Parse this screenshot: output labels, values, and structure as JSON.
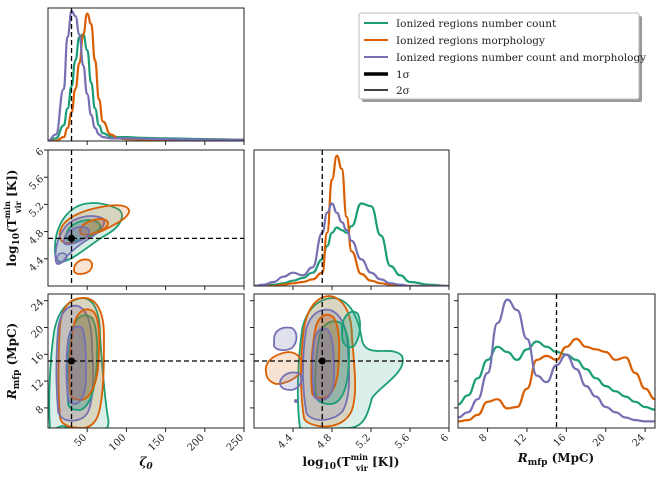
{
  "chart_data": {
    "type": "corner",
    "parameters": [
      {
        "key": "zeta",
        "label": "ζ₀",
        "range": [
          0,
          250
        ],
        "ticks": [
          50,
          100,
          150,
          200,
          250
        ],
        "truth": 30
      },
      {
        "key": "tvir",
        "label": "log₁₀(T_vir^min [K])",
        "range": [
          4.0,
          6.0
        ],
        "ticks": [
          4.4,
          4.8,
          5.2,
          5.6,
          6.0
        ],
        "truth": 4.7
      },
      {
        "key": "rmfp",
        "label": "R_mfp (MpC)",
        "range": [
          5,
          25
        ],
        "ticks": [
          8,
          12,
          16,
          20,
          24
        ],
        "truth": 15
      }
    ],
    "axis_labels": {
      "zeta": {
        "main": "ζ",
        "sub": "0"
      },
      "tvir": {
        "pre": "log",
        "base": "10",
        "open": "(T",
        "sup": "min",
        "sub": "vir",
        "close": " [K])"
      },
      "rmfp": {
        "main": "R",
        "sub": "mfp",
        "unit": " (MpC)"
      }
    },
    "series": [
      {
        "name": "Ionized regions number count",
        "color": "#1b9e77"
      },
      {
        "name": "Ionized regions morphology",
        "color": "#d95f02"
      },
      {
        "name": "Ionized regions number count and morphology",
        "color": "#7570b3"
      }
    ],
    "legend_extra": [
      {
        "name": "1σ",
        "style": "thick"
      },
      {
        "name": "2σ",
        "style": "thin"
      }
    ],
    "marginals": {
      "zeta": {
        "x": [
          0,
          10,
          20,
          25,
          30,
          35,
          40,
          45,
          50,
          55,
          60,
          65,
          70,
          80,
          90,
          100,
          120,
          150,
          200,
          250
        ],
        "green": [
          0.0,
          0.02,
          0.12,
          0.25,
          0.42,
          0.62,
          0.8,
          0.82,
          0.7,
          0.45,
          0.25,
          0.12,
          0.06,
          0.035,
          0.03,
          0.03,
          0.025,
          0.02,
          0.015,
          0.01
        ],
        "orange": [
          0.0,
          0.0,
          0.03,
          0.1,
          0.22,
          0.4,
          0.6,
          0.82,
          0.98,
          0.9,
          0.62,
          0.32,
          0.15,
          0.05,
          0.02,
          0.015,
          0.012,
          0.01,
          0.01,
          0.008
        ],
        "purple": [
          0.0,
          0.05,
          0.4,
          0.8,
          1.0,
          0.96,
          0.82,
          0.58,
          0.36,
          0.2,
          0.1,
          0.05,
          0.03,
          0.02,
          0.02,
          0.02,
          0.018,
          0.015,
          0.01,
          0.008
        ]
      },
      "tvir": {
        "x": [
          4.0,
          4.1,
          4.2,
          4.3,
          4.4,
          4.5,
          4.6,
          4.7,
          4.75,
          4.8,
          4.85,
          4.9,
          4.95,
          5.0,
          5.1,
          5.2,
          5.3,
          5.4,
          5.5,
          5.6,
          5.8,
          6.0
        ],
        "green": [
          0.0,
          0.0,
          0.01,
          0.02,
          0.04,
          0.06,
          0.1,
          0.2,
          0.3,
          0.4,
          0.44,
          0.42,
          0.4,
          0.45,
          0.62,
          0.6,
          0.38,
          0.15,
          0.08,
          0.03,
          0.01,
          0.0
        ],
        "orange": [
          0.0,
          0.0,
          0.0,
          0.01,
          0.02,
          0.03,
          0.05,
          0.1,
          0.4,
          0.8,
          0.98,
          0.88,
          0.52,
          0.26,
          0.09,
          0.04,
          0.02,
          0.01,
          0.0,
          0.0,
          0.0,
          0.0
        ],
        "purple": [
          0.0,
          0.01,
          0.03,
          0.07,
          0.1,
          0.08,
          0.14,
          0.4,
          0.55,
          0.62,
          0.55,
          0.48,
          0.42,
          0.34,
          0.2,
          0.1,
          0.05,
          0.02,
          0.01,
          0.0,
          0.0,
          0.0
        ]
      },
      "rmfp": {
        "x": [
          5,
          6,
          7,
          8,
          9,
          10,
          11,
          12,
          13,
          14,
          15,
          16,
          17,
          18,
          19,
          20,
          21,
          22,
          23,
          24,
          25
        ],
        "green": [
          0.18,
          0.25,
          0.38,
          0.52,
          0.62,
          0.58,
          0.52,
          0.6,
          0.66,
          0.62,
          0.58,
          0.56,
          0.52,
          0.45,
          0.38,
          0.32,
          0.28,
          0.24,
          0.2,
          0.16,
          0.14
        ],
        "orange": [
          0.05,
          0.06,
          0.1,
          0.2,
          0.22,
          0.15,
          0.16,
          0.3,
          0.52,
          0.55,
          0.52,
          0.62,
          0.68,
          0.62,
          0.6,
          0.58,
          0.52,
          0.54,
          0.42,
          0.3,
          0.22
        ],
        "purple": [
          0.08,
          0.12,
          0.22,
          0.42,
          0.8,
          0.98,
          0.9,
          0.68,
          0.4,
          0.35,
          0.48,
          0.56,
          0.45,
          0.32,
          0.24,
          0.16,
          0.12,
          0.08,
          0.06,
          0.05,
          0.05
        ]
      }
    }
  }
}
